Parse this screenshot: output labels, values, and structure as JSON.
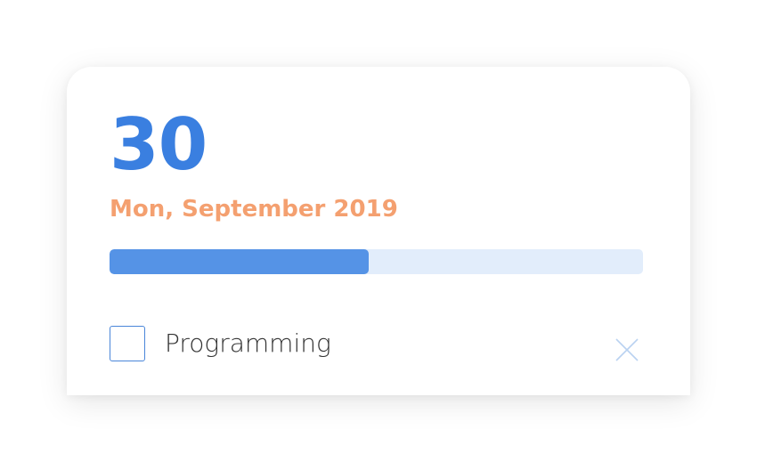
{
  "date": {
    "day": "30",
    "label": "Mon, September 2019"
  },
  "progress": {
    "fraction": 0.485
  },
  "task": {
    "label": "Programming",
    "checked": false
  },
  "icons": {
    "checkbox": "checkbox-icon",
    "delete": "close-icon"
  },
  "colors": {
    "day_number": "#3a7fe0",
    "date_label": "#f4a070",
    "progress_fill": "#5593e6",
    "progress_track": "#e2edfb",
    "checkbox_border": "#4a86d9",
    "close_icon": "#b9d2f1"
  }
}
